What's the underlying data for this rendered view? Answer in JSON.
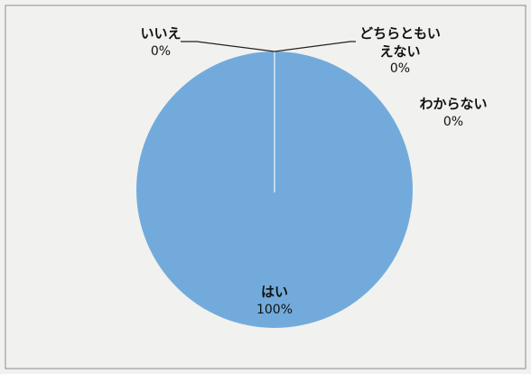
{
  "chart_data": {
    "type": "pie",
    "slices": [
      {
        "label": "はい",
        "value": 100,
        "value_label": "100%",
        "color": "#72abdb"
      },
      {
        "label": "いいえ",
        "value": 0,
        "value_label": "0%",
        "color": "#ed7d31"
      },
      {
        "label": "どちらともいえない",
        "label_lines": [
          "どちらともい",
          "えない"
        ],
        "value": 0,
        "value_label": "0%",
        "color": "#a5a5a5"
      },
      {
        "label": "わからない",
        "value": 0,
        "value_label": "0%",
        "color": "#ffc000"
      }
    ],
    "legend": "none"
  },
  "colors": {
    "background": "#f1f1ef",
    "frame": "#8a8a8a",
    "separator": "#dbeaf6",
    "leader": "#222222"
  }
}
